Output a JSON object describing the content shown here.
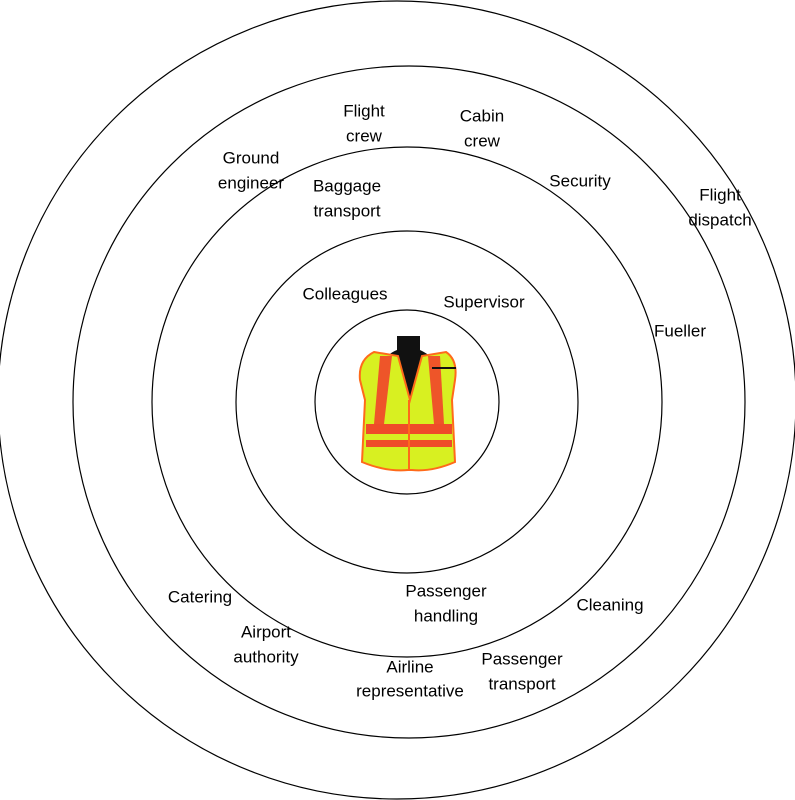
{
  "labels": [
    {
      "lines": [
        "Flight",
        "crew"
      ]
    },
    {
      "lines": [
        "Cabin",
        "crew"
      ]
    },
    {
      "lines": [
        "Ground",
        "engineer"
      ]
    },
    {
      "lines": [
        "Security"
      ]
    },
    {
      "lines": [
        "Flight",
        "dispatch"
      ]
    },
    {
      "lines": [
        "Baggage",
        "transport"
      ]
    },
    {
      "lines": [
        "Colleagues"
      ]
    },
    {
      "lines": [
        "Supervisor"
      ]
    },
    {
      "lines": [
        "Fueller"
      ]
    },
    {
      "lines": [
        "Catering"
      ]
    },
    {
      "lines": [
        "Passenger",
        "handling"
      ]
    },
    {
      "lines": [
        "Cleaning"
      ]
    },
    {
      "lines": [
        "Airport",
        "authority"
      ]
    },
    {
      "lines": [
        "Airline",
        "representative"
      ]
    },
    {
      "lines": [
        "Passenger",
        "transport"
      ]
    }
  ]
}
